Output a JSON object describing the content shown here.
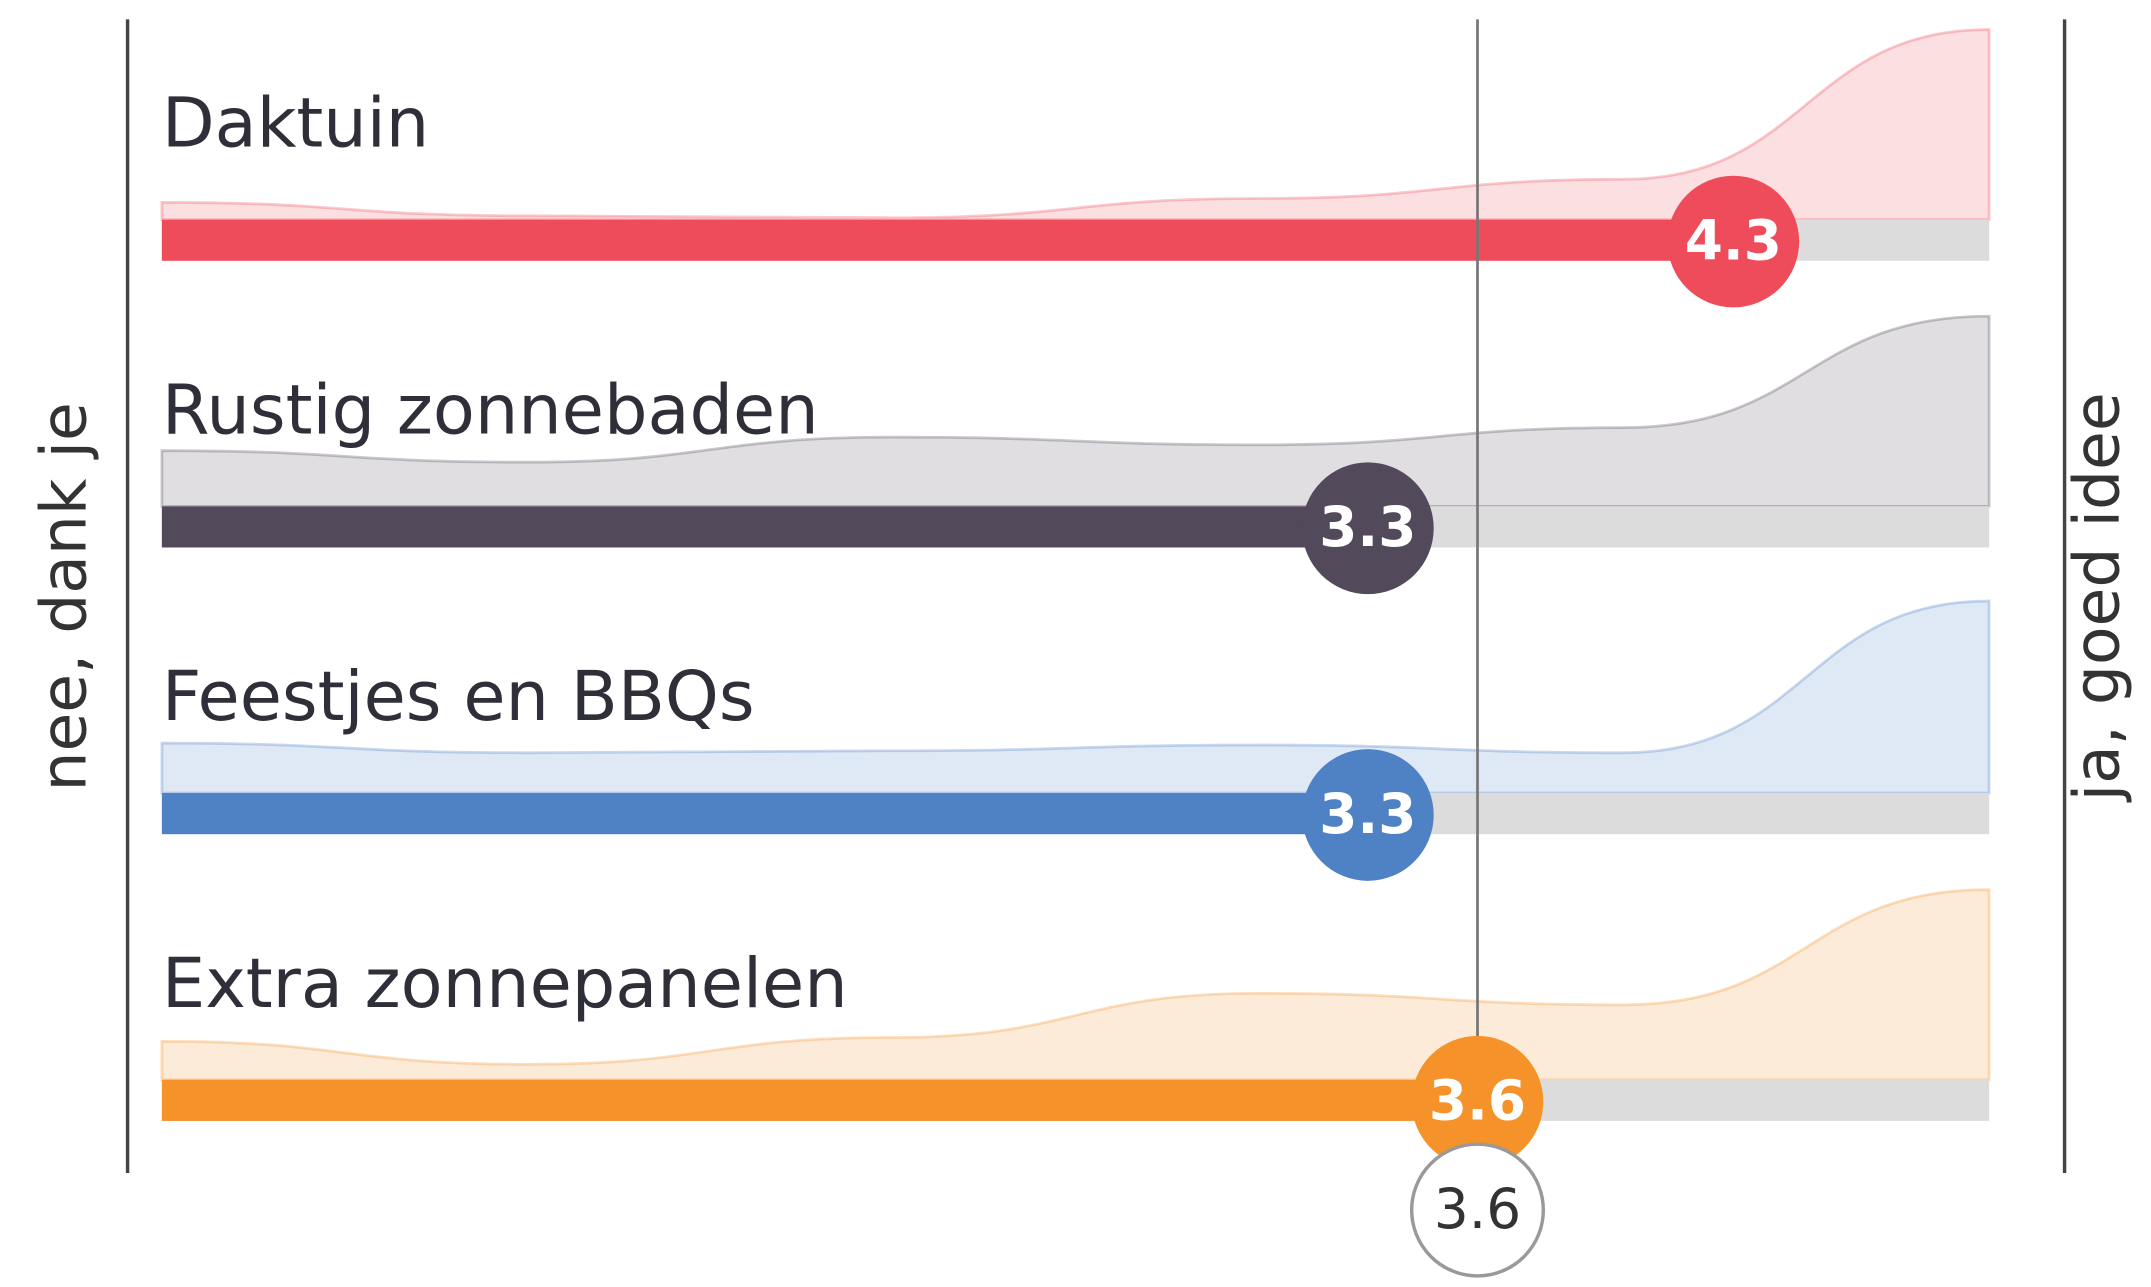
{
  "chart_data": {
    "type": "bar",
    "orientation": "horizontal",
    "categories": [
      "Daktuin",
      "Rustig zonnebaden",
      "Feestjes en BBQs",
      "Extra zonnepanelen"
    ],
    "values": [
      4.3,
      3.3,
      3.3,
      3.6
    ],
    "colors": [
      "#ee4c5a",
      "#52495a",
      "#4f81c5",
      "#f5922a"
    ],
    "xlim": [
      0,
      5
    ],
    "average": 3.6,
    "left_label": "nee, dank je",
    "right_label": "ja, goed idee",
    "density": {
      "x": [
        0,
        1,
        2,
        3,
        4,
        5
      ],
      "lim": [
        0,
        1
      ],
      "values": [
        [
          0.09,
          0.02,
          0.01,
          0.11,
          0.21,
          0.99
        ],
        [
          0.29,
          0.23,
          0.36,
          0.32,
          0.41,
          0.99
        ],
        [
          0.26,
          0.21,
          0.22,
          0.25,
          0.21,
          1.0
        ],
        [
          0.2,
          0.08,
          0.22,
          0.45,
          0.39,
          0.99
        ]
      ]
    }
  }
}
